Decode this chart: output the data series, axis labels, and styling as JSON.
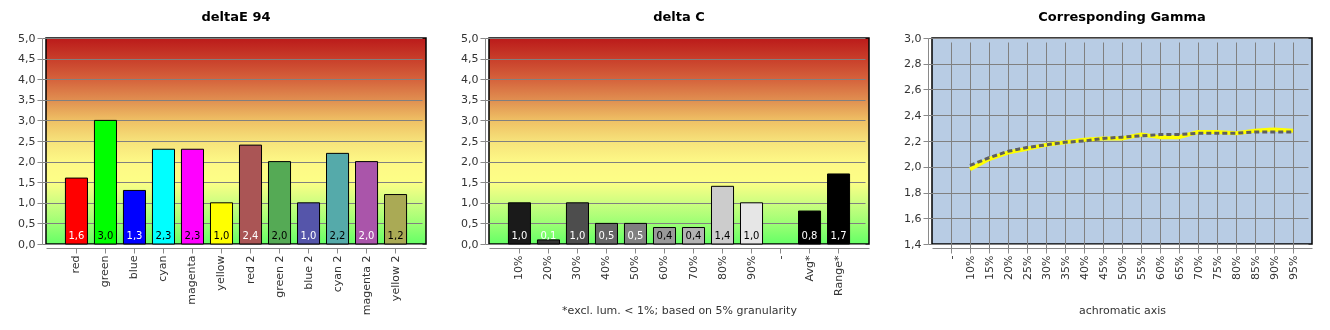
{
  "chart_data": [
    {
      "type": "bar",
      "title": "deltaE 94",
      "categories": [
        "red",
        "green",
        "blue",
        "cyan",
        "magenta",
        "yellow",
        "red 2",
        "green 2",
        "blue 2",
        "cyan 2",
        "magenta 2",
        "yellow 2"
      ],
      "values": [
        1.6,
        3.0,
        1.3,
        2.3,
        2.3,
        1.0,
        2.4,
        2.0,
        1.0,
        2.2,
        2.0,
        1.2
      ],
      "colors": [
        "#ff0000",
        "#00ff00",
        "#0000ff",
        "#00ffff",
        "#ff00ff",
        "#ffff00",
        "#aa5555",
        "#55aa55",
        "#5555aa",
        "#55aaaa",
        "#aa55aa",
        "#aaaa55"
      ],
      "value_labels": [
        "1,6",
        "3,0",
        "1,3",
        "2,3",
        "2,3",
        "1,0",
        "2,4",
        "2,0",
        "1,0",
        "2,2",
        "2,0",
        "1,2"
      ],
      "ylim": [
        0,
        5
      ],
      "yticks": [
        {
          "value": 0,
          "label": "0,0"
        },
        {
          "value": 0.5,
          "label": "0,5"
        },
        {
          "value": 1,
          "label": "1,0"
        },
        {
          "value": 1.5,
          "label": "1,5"
        },
        {
          "value": 2,
          "label": "2,0"
        },
        {
          "value": 2.5,
          "label": "2,5"
        },
        {
          "value": 3,
          "label": "3,0"
        },
        {
          "value": 3.5,
          "label": "3,5"
        },
        {
          "value": 4,
          "label": "4,0"
        },
        {
          "value": 4.5,
          "label": "4,5"
        },
        {
          "value": 5,
          "label": "5,0"
        }
      ],
      "grid": "y"
    },
    {
      "type": "bar",
      "title": "delta C",
      "categories": [
        "10%",
        "20%",
        "30%",
        "40%",
        "50%",
        "60%",
        "70%",
        "80%",
        "90%",
        "-",
        "Avg*",
        "Range*"
      ],
      "values": [
        1.0,
        0.1,
        1.0,
        0.5,
        0.5,
        0.4,
        0.4,
        1.4,
        1.0,
        null,
        0.8,
        1.7
      ],
      "colors": [
        "#1a1a1a",
        "#333333",
        "#4d4d4d",
        "#666666",
        "#808080",
        "#999999",
        "#b3b3b3",
        "#cccccc",
        "#e6e6e6",
        null,
        "#000000",
        "#000000"
      ],
      "value_labels": [
        "1,0",
        "0,1",
        "1,0",
        "0,5",
        "0,5",
        "0,4",
        "0,4",
        "1,4",
        "1,0",
        null,
        "0,8",
        "1,7"
      ],
      "ylim": [
        0,
        5
      ],
      "yticks": [
        {
          "value": 0,
          "label": "0,0"
        },
        {
          "value": 0.5,
          "label": "0,5"
        },
        {
          "value": 1,
          "label": "1,0"
        },
        {
          "value": 1.5,
          "label": "1,5"
        },
        {
          "value": 2,
          "label": "2,0"
        },
        {
          "value": 2.5,
          "label": "2,5"
        },
        {
          "value": 3,
          "label": "3,0"
        },
        {
          "value": 3.5,
          "label": "3,5"
        },
        {
          "value": 4,
          "label": "4,0"
        },
        {
          "value": 4.5,
          "label": "4,5"
        },
        {
          "value": 5,
          "label": "5,0"
        }
      ],
      "grid": "y",
      "annotations": [
        "*excl. lum. < 1%; based on 5% granularity"
      ]
    },
    {
      "type": "line",
      "title": "Corresponding Gamma",
      "xlabel": "achromatic axis",
      "categories": [
        "-",
        "10%",
        "15%",
        "20%",
        "25%",
        "30%",
        "35%",
        "40%",
        "45%",
        "50%",
        "55%",
        "60%",
        "65%",
        "70%",
        "75%",
        "80%",
        "85%",
        "90%",
        "95%"
      ],
      "series": [
        {
          "color": "#ffff00",
          "line_style": "solid",
          "values": [
            null,
            1.98,
            2.06,
            2.11,
            2.14,
            2.17,
            2.19,
            2.21,
            2.22,
            2.22,
            2.25,
            2.23,
            2.23,
            2.27,
            2.27,
            2.26,
            2.28,
            2.29,
            2.28
          ]
        },
        {
          "color": "#5f5f5f",
          "line_style": "dashed",
          "values": [
            null,
            2.01,
            2.07,
            2.12,
            2.15,
            2.17,
            2.19,
            2.2,
            2.22,
            2.23,
            2.24,
            2.25,
            2.25,
            2.26,
            2.26,
            2.26,
            2.27,
            2.27,
            2.27
          ]
        }
      ],
      "ylim": [
        1.4,
        3.0
      ],
      "yticks": [
        {
          "value": 1.4,
          "label": "1,4"
        },
        {
          "value": 1.6,
          "label": "1,6"
        },
        {
          "value": 1.8,
          "label": "1,8"
        },
        {
          "value": 2.0,
          "label": "2,0"
        },
        {
          "value": 2.2,
          "label": "2,2"
        },
        {
          "value": 2.4,
          "label": "2,4"
        },
        {
          "value": 2.6,
          "label": "2,6"
        },
        {
          "value": 2.8,
          "label": "2,8"
        },
        {
          "value": 3.0,
          "label": "3,0"
        }
      ],
      "grid": true
    }
  ]
}
